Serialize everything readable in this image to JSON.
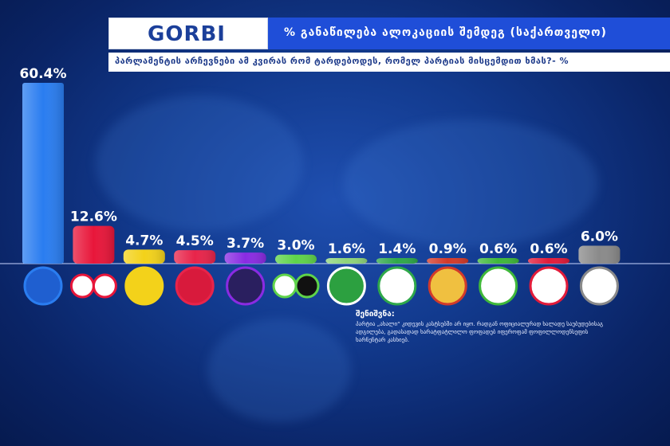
{
  "header": {
    "logo": "GORBI",
    "title": "% განაწილება ალოკაციის შემდეგ (საქართველო)",
    "subtitle": "პარლამენტის არჩევნები ამ კვირას რომ ტარდებოდეს, რომელ პარტიას მისცემდით ხმას?- %"
  },
  "note": {
    "title": "შენიშვნა:",
    "text": "პარტია „ახალი“ კიდევის კასტსებში არ იყო. რადგან ოფიციალურად ხალადე საუბუდებისაგ ადგილება, გადასადად ხარატფატლილო ფოფადებ იფეროფამ ფოფილლოდენსეფის ხარნენტარ კასხიებ."
  },
  "chart_data": {
    "type": "bar",
    "values": [
      60.4,
      12.6,
      4.7,
      4.5,
      3.7,
      3.0,
      1.6,
      1.4,
      0.9,
      0.6,
      0.6,
      6.0
    ],
    "labels": [
      "60.4%",
      "12.6%",
      "4.7%",
      "4.5%",
      "3.7%",
      "3.0%",
      "1.6%",
      "1.4%",
      "0.9%",
      "0.6%",
      "0.6%",
      "6.0%"
    ],
    "colors": [
      "#2a7df0",
      "#e8163a",
      "#f3d21a",
      "#e8244a",
      "#8a2be2",
      "#5fd34a",
      "#8fd47a",
      "#2fa84a",
      "#d23a2a",
      "#3fb83a",
      "#e21b3a",
      "#8a8a8a"
    ],
    "ylim": [
      0,
      62
    ]
  }
}
